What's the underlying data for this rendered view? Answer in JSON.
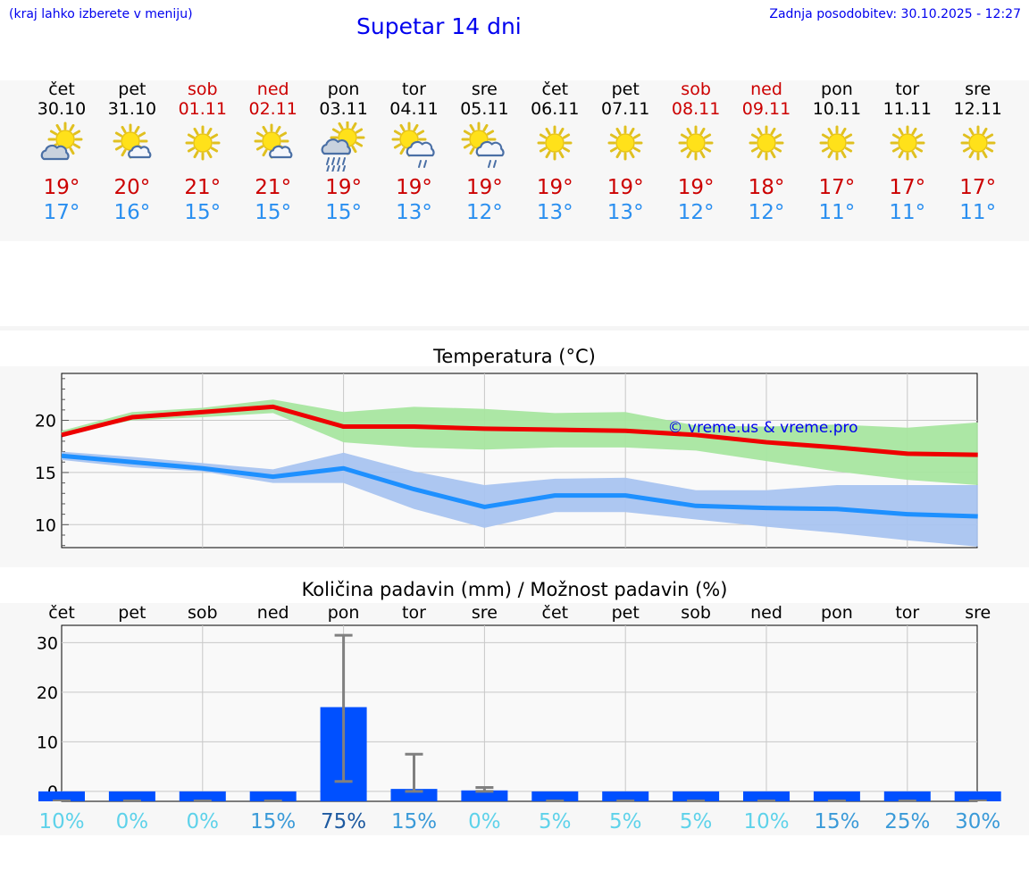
{
  "header": {
    "location_hint": "(kraj lahko izberete v meniju)",
    "title": "Supetar 14 dni",
    "updated": "Zadnja posodobitev: 30.10.2025 - 12:27"
  },
  "days": [
    {
      "name": "čet",
      "date": "30.10",
      "weekend": false,
      "icon": "sun-cloud-icon",
      "tmax": "19°",
      "tmin": "17°"
    },
    {
      "name": "pet",
      "date": "31.10",
      "weekend": false,
      "icon": "sun-small-cloud-icon",
      "tmax": "20°",
      "tmin": "16°"
    },
    {
      "name": "sob",
      "date": "01.11",
      "weekend": true,
      "icon": "sun-icon",
      "tmax": "21°",
      "tmin": "15°"
    },
    {
      "name": "ned",
      "date": "02.11",
      "weekend": true,
      "icon": "sun-small-cloud-icon",
      "tmax": "21°",
      "tmin": "15°"
    },
    {
      "name": "pon",
      "date": "03.11",
      "weekend": false,
      "icon": "sun-cloud-heavy-rain-icon",
      "tmax": "19°",
      "tmin": "15°"
    },
    {
      "name": "tor",
      "date": "04.11",
      "weekend": false,
      "icon": "sun-cloud-rain-icon",
      "tmax": "19°",
      "tmin": "13°"
    },
    {
      "name": "sre",
      "date": "05.11",
      "weekend": false,
      "icon": "sun-cloud-rain-icon",
      "tmax": "19°",
      "tmin": "12°"
    },
    {
      "name": "čet",
      "date": "06.11",
      "weekend": false,
      "icon": "sun-icon",
      "tmax": "19°",
      "tmin": "13°"
    },
    {
      "name": "pet",
      "date": "07.11",
      "weekend": false,
      "icon": "sun-icon",
      "tmax": "19°",
      "tmin": "13°"
    },
    {
      "name": "sob",
      "date": "08.11",
      "weekend": true,
      "icon": "sun-icon",
      "tmax": "19°",
      "tmin": "12°"
    },
    {
      "name": "ned",
      "date": "09.11",
      "weekend": true,
      "icon": "sun-icon",
      "tmax": "18°",
      "tmin": "12°"
    },
    {
      "name": "pon",
      "date": "10.11",
      "weekend": false,
      "icon": "sun-icon",
      "tmax": "17°",
      "tmin": "11°"
    },
    {
      "name": "tor",
      "date": "11.11",
      "weekend": false,
      "icon": "sun-icon",
      "tmax": "17°",
      "tmin": "11°"
    },
    {
      "name": "sre",
      "date": "12.11",
      "weekend": false,
      "icon": "sun-icon",
      "tmax": "17°",
      "tmin": "11°"
    }
  ],
  "colors": {
    "max_line": "#ee0000",
    "max_band": "#a8e6a0",
    "min_line": "#1e90ff",
    "min_band": "#a9c4f0",
    "bar": "#0050ff",
    "errorbar": "#808080",
    "weekend_text": "#cc0000",
    "link_text": "#0000ee"
  },
  "chart_data": [
    {
      "type": "line",
      "title": "Temperatura (°C)",
      "watermark": "© vreme.us & vreme.pro",
      "ylim": [
        7.8,
        24.5
      ],
      "yticks": [
        "10",
        "15",
        "20"
      ],
      "x": [
        0,
        1,
        2,
        3,
        4,
        5,
        6,
        7,
        8,
        9,
        10,
        11,
        12,
        13
      ],
      "series": [
        {
          "name": "max",
          "values": [
            18.6,
            20.3,
            20.8,
            21.3,
            19.4,
            19.4,
            19.2,
            19.1,
            19.0,
            18.6,
            17.9,
            17.4,
            16.8,
            16.7
          ],
          "band_low": [
            18.6,
            20.0,
            20.3,
            20.7,
            17.9,
            17.4,
            17.2,
            17.4,
            17.4,
            17.1,
            16.1,
            15.1,
            14.3,
            13.8
          ],
          "band_high": [
            19.0,
            20.8,
            21.2,
            22.0,
            20.8,
            21.3,
            21.1,
            20.7,
            20.8,
            19.5,
            19.4,
            19.6,
            19.3,
            19.8
          ]
        },
        {
          "name": "min",
          "values": [
            16.6,
            16.0,
            15.4,
            14.6,
            15.4,
            13.4,
            11.7,
            12.8,
            12.8,
            11.8,
            11.6,
            11.5,
            11.0,
            10.8
          ],
          "band_low": [
            16.2,
            15.5,
            15.1,
            14.0,
            14.0,
            11.5,
            9.7,
            11.2,
            11.2,
            10.5,
            9.8,
            9.2,
            8.5,
            7.9
          ],
          "band_high": [
            17.0,
            16.5,
            15.9,
            15.3,
            16.9,
            15.1,
            13.8,
            14.4,
            14.5,
            13.3,
            13.3,
            13.8,
            13.8,
            13.8
          ]
        }
      ]
    },
    {
      "type": "bar",
      "title": "Količina padavin (mm) / Možnost padavin (%)",
      "categories": [
        "čet",
        "pet",
        "sob",
        "ned",
        "pon",
        "tor",
        "sre",
        "čet",
        "pet",
        "sob",
        "ned",
        "pon",
        "tor",
        "sre"
      ],
      "ylim": [
        -2,
        33.5
      ],
      "yticks": [
        "0",
        "10",
        "20",
        "30"
      ],
      "values": [
        0,
        0,
        0,
        0,
        17.0,
        0.5,
        0.2,
        0,
        0,
        0,
        0,
        0,
        0,
        0
      ],
      "error_low": [
        0,
        0,
        0,
        0,
        2.0,
        0,
        0,
        0,
        0,
        0,
        0,
        0,
        0,
        0
      ],
      "error_high": [
        0,
        0,
        0,
        0,
        31.5,
        7.5,
        0.8,
        0,
        0,
        0,
        0,
        0,
        0,
        0
      ],
      "probability": [
        "10%",
        "0%",
        "0%",
        "15%",
        "75%",
        "15%",
        "0%",
        "5%",
        "5%",
        "5%",
        "10%",
        "15%",
        "25%",
        "30%"
      ],
      "probability_values": [
        10,
        0,
        0,
        15,
        75,
        15,
        0,
        5,
        5,
        5,
        10,
        15,
        25,
        30
      ]
    }
  ]
}
